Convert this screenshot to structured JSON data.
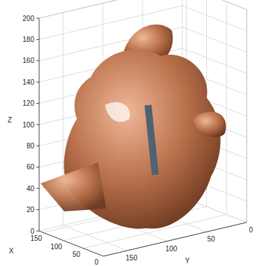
{
  "chart_data": {
    "type": "isosurface",
    "xlabel": "X",
    "ylabel": "Y",
    "zlabel": "Z",
    "xlim": [
      0,
      160
    ],
    "xticks": [
      0,
      50,
      100,
      150
    ],
    "ylim": [
      0,
      180
    ],
    "yticks": [
      0,
      50,
      100,
      150
    ],
    "zlim": [
      0,
      200
    ],
    "zticks": [
      0,
      20,
      40,
      60,
      80,
      100,
      120,
      140,
      160,
      180,
      200
    ],
    "grid": true,
    "colors": [
      "#b8704a",
      "#4f6272"
    ]
  }
}
